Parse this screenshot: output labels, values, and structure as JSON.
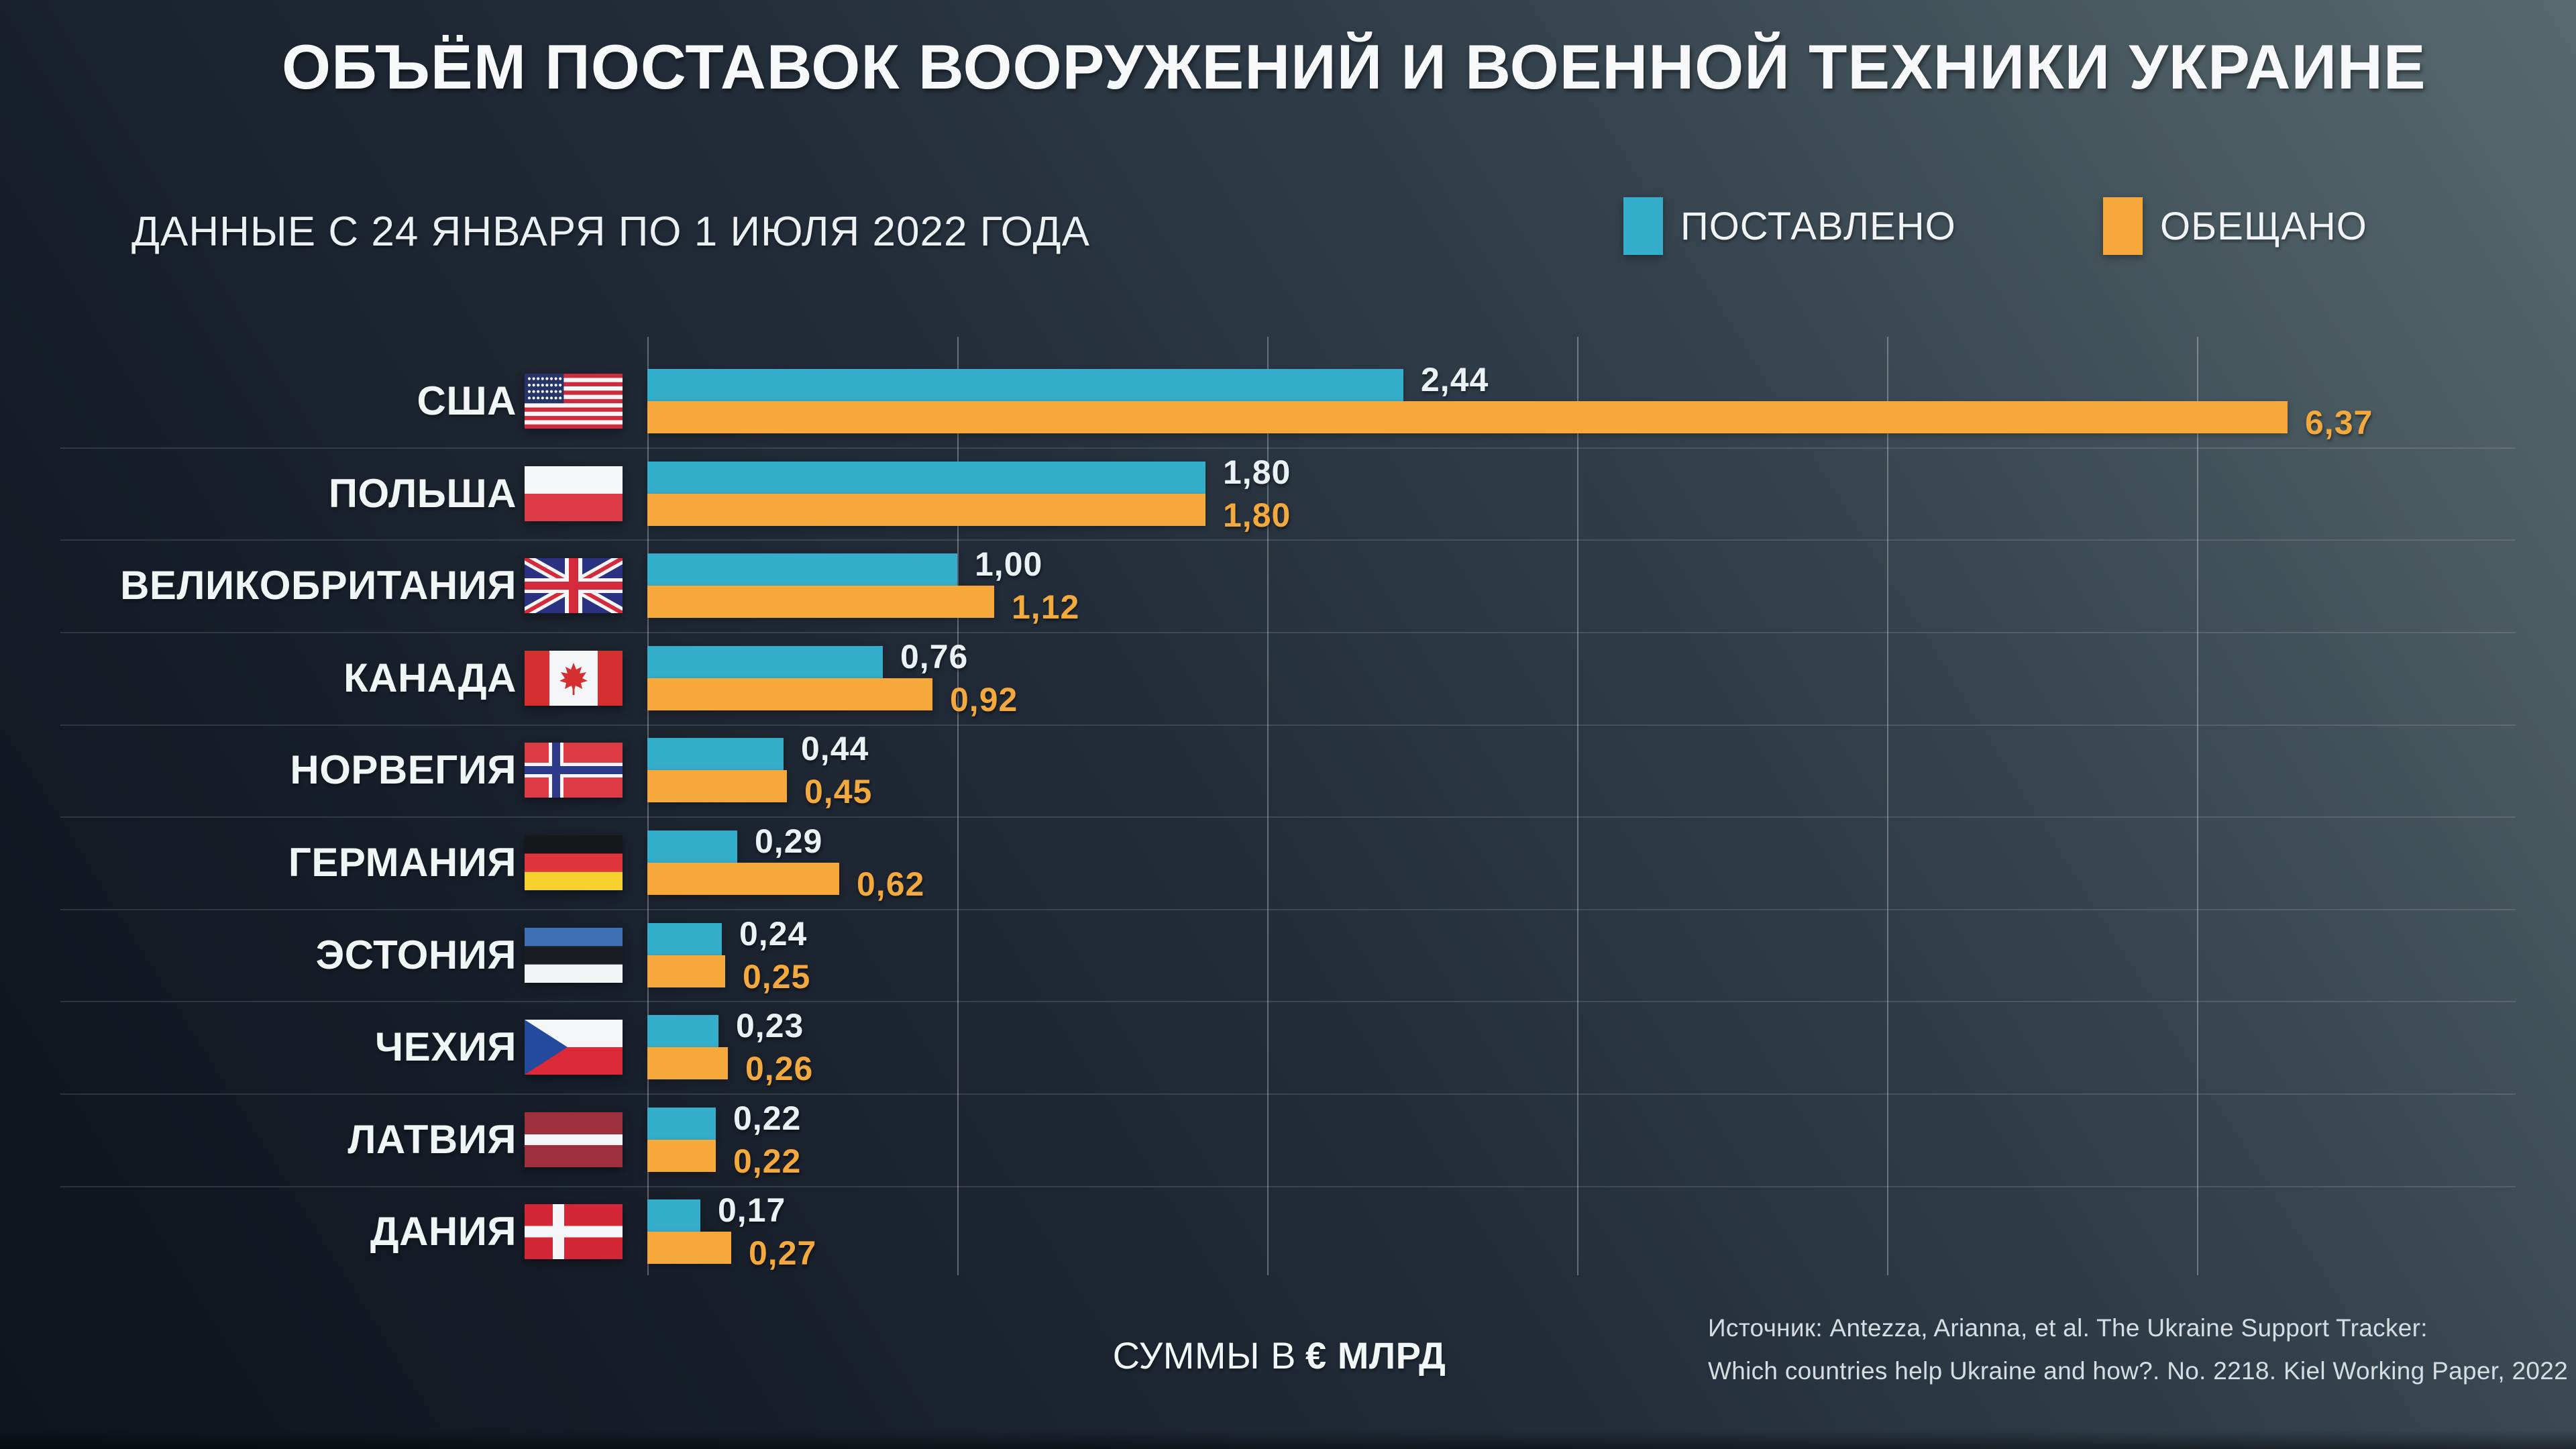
{
  "title": "ОБЪЁМ ПОСТАВОК ВООРУЖЕНИЙ И ВОЕННОЙ ТЕХНИКИ УКРАИНЕ",
  "subtitle": "ДАННЫЕ С 24 ЯНВАРЯ ПО 1 ИЮЛЯ 2022 ГОДА",
  "legend": {
    "delivered": "ПОСТАВЛЕНО",
    "promised": "ОБЕЩАНО"
  },
  "footer": {
    "units_prefix": "СУММЫ В",
    "units_bold": "€ МЛРД",
    "source_line1": "Источник: Antezza, Arianna, et al. The Ukraine Support Tracker:",
    "source_line2": "Which countries help Ukraine and how?. No. 2218. Kiel Working Paper, 2022"
  },
  "colors": {
    "delivered_bar": "#35AECB",
    "promised_bar": "#F6A83B",
    "delivered_value_text": "#EAF2F5",
    "promised_value_text": "#F4A93E",
    "background_bottom_left": "#0E131C",
    "background_top_right": "#576A70",
    "gridline": "rgba(255,255,255,0.30)",
    "row_separator": "rgba(255,255,255,0.12)"
  },
  "chart_data": {
    "type": "bar",
    "orientation": "horizontal",
    "units": "€ млрд",
    "title": "ОБЪЁМ ПОСТАВОК ВООРУЖЕНИЙ И ВОЕННОЙ ТЕХНИКИ УКРАИНЕ",
    "subtitle": "ДАННЫЕ С 24 ЯНВАРЯ ПО 1 ИЮЛЯ 2022 ГОДА",
    "categories": [
      "США",
      "ПОЛЬША",
      "ВЕЛИКОБРИТАНИЯ",
      "КАНАДА",
      "НОРВЕГИЯ",
      "ГЕРМАНИЯ",
      "ЭСТОНИЯ",
      "ЧЕХИЯ",
      "ЛАТВИЯ",
      "ДАНИЯ"
    ],
    "flags": [
      "us",
      "pl",
      "gb",
      "ca",
      "no",
      "de",
      "ee",
      "cz",
      "lv",
      "dk"
    ],
    "series": [
      {
        "name": "ПОСТАВЛЕНО",
        "values": [
          2.44,
          1.8,
          1.0,
          0.76,
          0.44,
          0.29,
          0.24,
          0.23,
          0.22,
          0.17
        ],
        "labels": [
          "2,44",
          "1,80",
          "1,00",
          "0,76",
          "0,44",
          "0,29",
          "0,24",
          "0,23",
          "0,22",
          "0,17"
        ]
      },
      {
        "name": "ОБЕЩАНО",
        "values": [
          6.37,
          1.8,
          1.12,
          0.92,
          0.45,
          0.62,
          0.25,
          0.26,
          0.22,
          0.27
        ],
        "labels": [
          "6,37",
          "1,80",
          "1,12",
          "0,92",
          "0,45",
          "0,62",
          "0,25",
          "0,26",
          "0,22",
          "0,27"
        ]
      }
    ],
    "xlim": [
      0,
      6.5
    ],
    "gridline_values": [
      0,
      1,
      2,
      3,
      4,
      5
    ],
    "legend_position": "top-right",
    "value_format": "comma-decimal",
    "grid": "vertical-lines"
  }
}
